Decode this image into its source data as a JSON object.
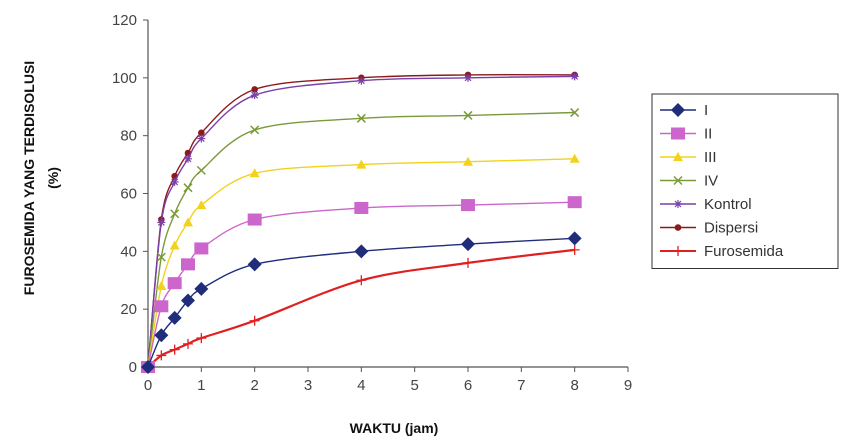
{
  "chart_data": {
    "type": "line",
    "title": "",
    "xlabel": "WAKTU (jam)",
    "ylabel_lines": [
      "FUROSEMIDA YANG TERDISOLUSI",
      "(%)"
    ],
    "xlim": [
      0,
      9
    ],
    "ylim": [
      0,
      120
    ],
    "xticks": [
      0,
      1,
      2,
      3,
      4,
      5,
      6,
      7,
      8,
      9
    ],
    "yticks": [
      0,
      20,
      40,
      60,
      80,
      100,
      120
    ],
    "grid": false,
    "legend_position": "right",
    "x": [
      0,
      0.25,
      0.5,
      0.75,
      1,
      2,
      4,
      6,
      8
    ],
    "series": [
      {
        "name": "I",
        "color": "#1f2d7a",
        "marker": "diamond",
        "values": [
          0,
          11,
          17,
          23,
          27,
          35.5,
          40,
          42.5,
          44.5
        ]
      },
      {
        "name": "II",
        "color": "#cc66cc",
        "marker": "square",
        "values": [
          0,
          21,
          29,
          35.5,
          41,
          51,
          55,
          56,
          57
        ]
      },
      {
        "name": "III",
        "color": "#f2d21b",
        "marker": "triangle",
        "values": [
          0,
          28,
          42,
          50,
          56,
          67,
          70,
          71,
          72
        ]
      },
      {
        "name": "IV",
        "color": "#7a9a3a",
        "marker": "x",
        "values": [
          0,
          38,
          53,
          62,
          68,
          82,
          86,
          87,
          88
        ]
      },
      {
        "name": "Kontrol",
        "color": "#7a3fa8",
        "marker": "star",
        "values": [
          0,
          50,
          64,
          72,
          79,
          94,
          99,
          100,
          100.5
        ]
      },
      {
        "name": "Dispersi",
        "color": "#8b1a1a",
        "marker": "circle",
        "values": [
          0,
          51,
          66,
          74,
          81,
          96,
          100,
          101,
          101
        ]
      },
      {
        "name": "Furosemida",
        "color": "#e02020",
        "marker": "plus",
        "values": [
          0,
          4,
          6,
          8,
          10,
          16,
          30,
          36,
          40.5
        ]
      }
    ]
  }
}
